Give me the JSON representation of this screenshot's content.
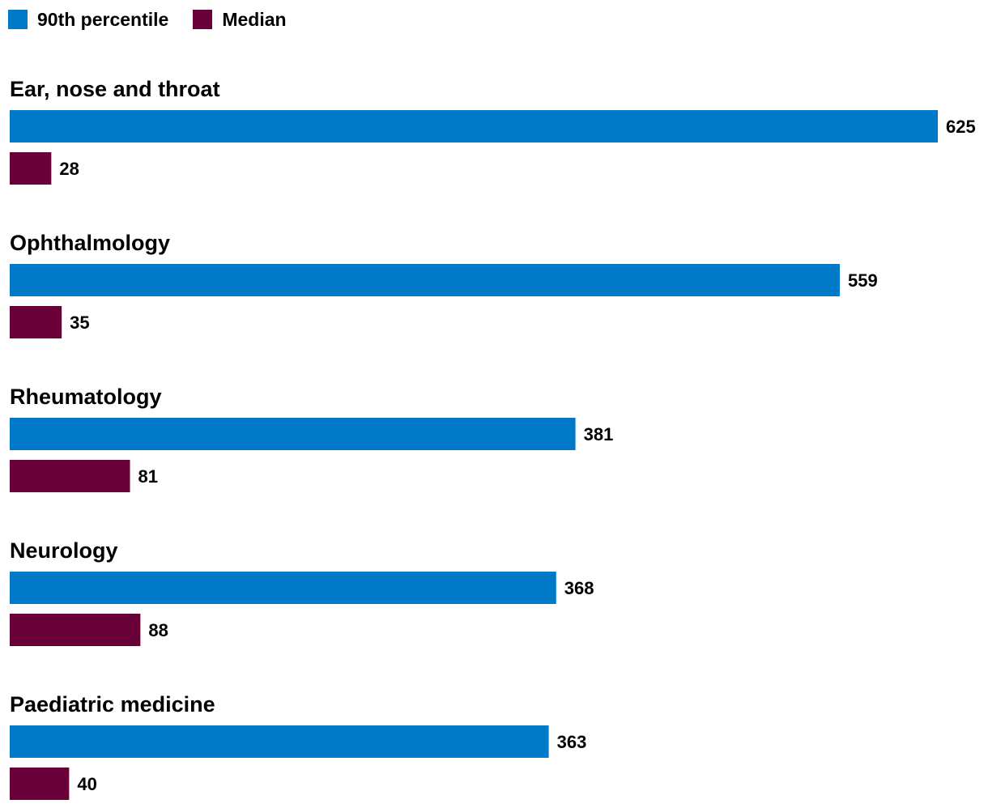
{
  "chart_data": {
    "type": "bar",
    "orientation": "horizontal",
    "categories": [
      "Ear, nose and throat",
      "Ophthalmology",
      "Rheumatology",
      "Neurology",
      "Paediatric medicine"
    ],
    "series": [
      {
        "name": "90th percentile",
        "color": "#0079c8",
        "values": [
          625,
          559,
          381,
          368,
          363
        ]
      },
      {
        "name": "Median",
        "color": "#6a0038",
        "values": [
          28,
          35,
          81,
          88,
          40
        ]
      }
    ],
    "xlim": [
      0,
      625
    ],
    "legend_position": "top-left",
    "grid": false
  }
}
